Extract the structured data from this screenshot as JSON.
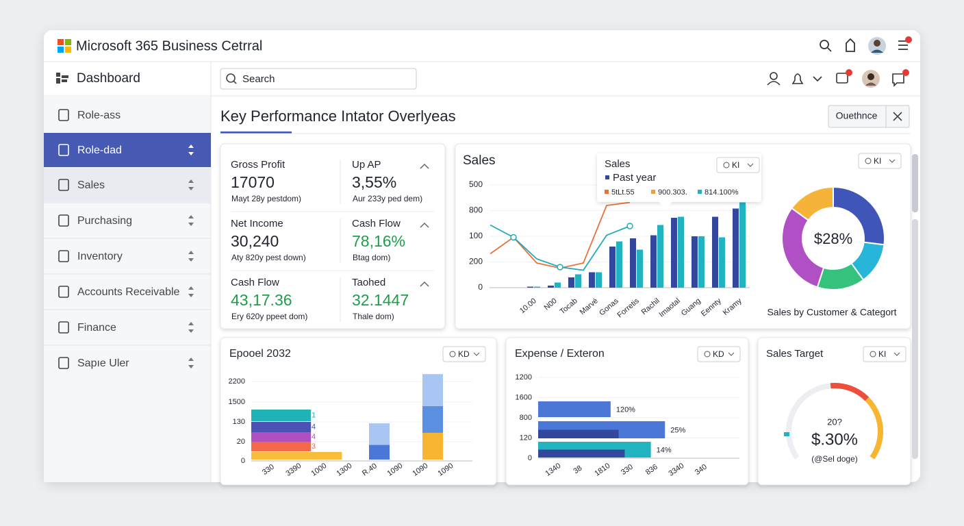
{
  "window": {
    "title": "Microsoft 365 Business Cetrral"
  },
  "toolbar": {
    "page": "Dashboard",
    "search": "Search"
  },
  "sidebar": {
    "items": [
      "Role-ass",
      "Role-dad",
      "Sales",
      "Purchasing",
      "Inventory",
      "Accounts Receivable",
      "Finance",
      "Sapıe Uler"
    ]
  },
  "main": {
    "title": "Key Performance Intator Overlyeas",
    "button": "Ouethnce"
  },
  "kpis": [
    {
      "label": "Gross Profit",
      "value": "17070",
      "note": "Mayt 28y pestdom)",
      "color": "#1f2430"
    },
    {
      "label": "Up AP",
      "value": "3,55%",
      "note": "Aur 233y ped dem)",
      "color": "#1f2430"
    },
    {
      "label": "Net Income",
      "value": "30,240",
      "note": "Aty 820y pest down)",
      "color": "#1f2430"
    },
    {
      "label": "Cash Flow",
      "value": "78,16%",
      "note": "Btag dom)",
      "color": "#1e9e4a"
    },
    {
      "label": "Cash Flow",
      "value": "43,17.36",
      "note": "Ery 620y ppeet dom)",
      "color": "#1e9e4a"
    },
    {
      "label": "Taohed",
      "value": "32.1447",
      "note": "Thale dom)",
      "color": "#1e9e4a"
    }
  ],
  "sales": {
    "title": "Sales",
    "dropdown": "KI",
    "y_labels": [
      "500",
      "800",
      "100",
      "200",
      "0"
    ],
    "categories": [
      "10.00",
      "N00",
      "Tocab",
      "Marvé",
      "Gonas",
      "Forretis",
      "Rachil",
      "Imaotal",
      "Guang",
      "Eennty",
      "Kramy"
    ],
    "bars": [
      {
        "color": "#33489c",
        "values": [
          1,
          2,
          10,
          15,
          40,
          48,
          51,
          68,
          50,
          69,
          77
        ]
      },
      {
        "color": "#22b3c1",
        "values": [
          1,
          5,
          13,
          15,
          45,
          37,
          61,
          69,
          50,
          49,
          83
        ]
      }
    ],
    "lines": [
      {
        "color": "#e8733a",
        "values": [
          33,
          49,
          24,
          19,
          24,
          80,
          83
        ]
      },
      {
        "color": "#22aab8",
        "values": [
          61,
          49,
          28,
          20,
          17,
          51,
          60
        ]
      }
    ],
    "tooltip": {
      "title": "Sales",
      "series": "Past year",
      "legend": [
        {
          "text": "5tLt.55",
          "color": "#e8733a"
        },
        {
          "text": "900.303.",
          "color": "#e8a03a"
        },
        {
          "text": "814.100%",
          "color": "#22b3c1"
        }
      ],
      "dropdown": "KI"
    }
  },
  "donut": {
    "center": "$28%",
    "caption": "Sales by Customer & Categort",
    "dropdown": "KI",
    "values": [
      27,
      13,
      15,
      30,
      15
    ],
    "colors": [
      "#3f55b8",
      "#27b6d9",
      "#35c27c",
      "#b14fc5",
      "#f5b33a"
    ]
  },
  "expense_chart": {
    "title": "Epooel 2032",
    "dropdown": "KD",
    "y_labels": [
      "2200",
      "1500",
      "130",
      "20",
      "0"
    ],
    "hbars": [
      {
        "value": 27,
        "color": "#1fb3b8",
        "label": "1"
      },
      {
        "value": 27,
        "color": "#4a52b5",
        "label": "4"
      },
      {
        "value": 27,
        "color": "#b04fc0",
        "label": "4"
      },
      {
        "value": 27,
        "color": "#f26a4a",
        "label": "3"
      },
      {
        "value": 41,
        "color": "#f8be3b"
      }
    ],
    "columns": [
      {
        "segments": [
          {
            "value": 17,
            "color": "#4b78d6"
          },
          {
            "value": 25,
            "color": "#a9c6f2"
          }
        ]
      },
      {
        "segments": [
          {
            "value": 31,
            "color": "#f7b531"
          },
          {
            "value": 31,
            "color": "#5b8fe0"
          },
          {
            "value": 37,
            "color": "#a9c6f2"
          }
        ]
      }
    ],
    "x_labels": [
      "330",
      "3390",
      "1000",
      "1300",
      "R.40",
      "1090",
      "1090",
      "1090"
    ]
  },
  "expense": {
    "title": "Expense / Exteron",
    "dropdown": "KD",
    "y_labels": [
      "1200",
      "1600",
      "800",
      "120",
      "0"
    ],
    "rows": [
      {
        "value": 36,
        "color": "#4b78d6",
        "label": "120%"
      },
      {
        "value": 63,
        "color": "#4b78d6",
        "inner": 40,
        "inner_color": "#33489c",
        "label": "25%"
      },
      {
        "value": 56,
        "color": "#22b3c1",
        "inner": 43,
        "inner_color": "#33489c",
        "label": "14%"
      }
    ],
    "x_labels": [
      "1340",
      "38",
      "1810",
      "330",
      "836",
      "3340",
      "340"
    ]
  },
  "target": {
    "title": "Sales Target",
    "dropdown": "KI",
    "top": "20?",
    "value": "$.30%",
    "note": "(@Sel doge)"
  }
}
